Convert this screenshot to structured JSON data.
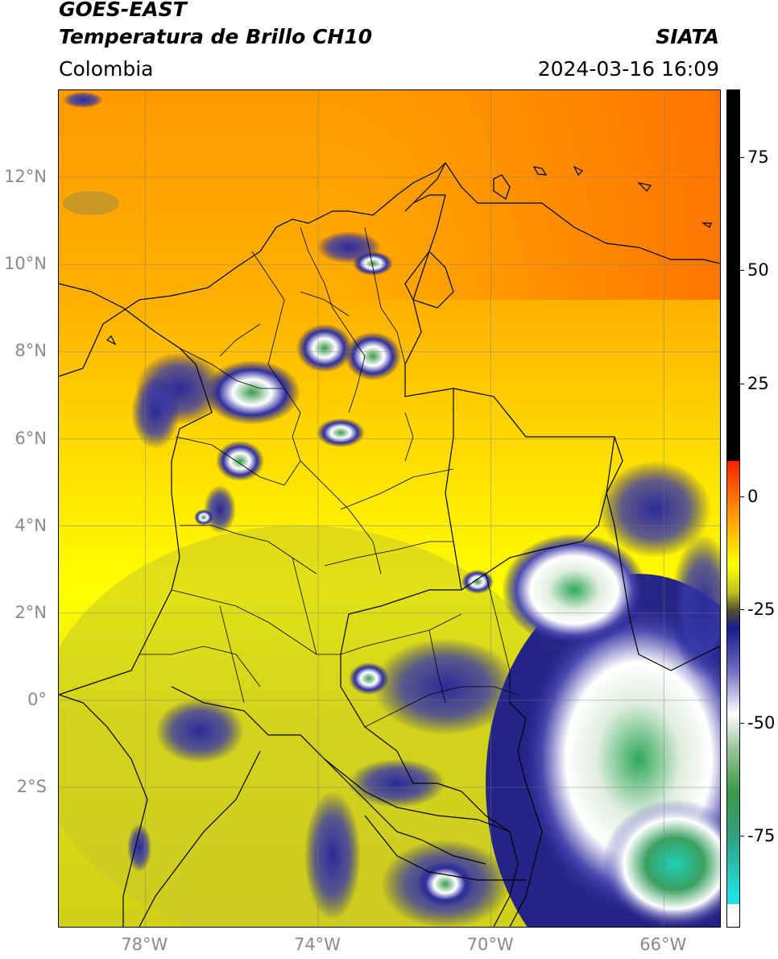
{
  "header": {
    "title_line1": "GOES-EAST",
    "title_line2": "Temperatura de Brillo CH10",
    "agency": "SIATA",
    "region": "Colombia",
    "datetime": "2024-03-16 16:09"
  },
  "map": {
    "lon_range": [
      -80,
      -64.7
    ],
    "lat_range": [
      -5.2,
      14.0
    ],
    "lat_ticks": [
      {
        "lat": 12,
        "label": "12°N"
      },
      {
        "lat": 10,
        "label": "10°N"
      },
      {
        "lat": 8,
        "label": "8°N"
      },
      {
        "lat": 6,
        "label": "6°N"
      },
      {
        "lat": 4,
        "label": "4°N"
      },
      {
        "lat": 2,
        "label": "2°N"
      },
      {
        "lat": 0,
        "label": "0°"
      },
      {
        "lat": -2,
        "label": "2°S"
      }
    ],
    "lon_ticks": [
      {
        "lon": -78,
        "label": "78°W"
      },
      {
        "lon": -74,
        "label": "74°W"
      },
      {
        "lon": -70,
        "label": "70°W"
      },
      {
        "lon": -66,
        "label": "66°W"
      }
    ],
    "colors": {
      "warm_sea": "#ff8c00",
      "land_warm": "#ffd400",
      "yellow": "#ffff00",
      "olive": "#c8c820",
      "cloud_blue": "#1a1a8c",
      "cloud_white": "#ffffff",
      "cloud_green": "#3a9a4a",
      "cloud_teal": "#20d0c0"
    },
    "gridlines": true
  },
  "colorbar": {
    "ticks": [
      {
        "value": 75,
        "label": "75"
      },
      {
        "value": 50,
        "label": "50"
      },
      {
        "value": 25,
        "label": "25"
      },
      {
        "value": 0,
        "label": "0"
      },
      {
        "value": -25,
        "label": "-25"
      },
      {
        "value": -50,
        "label": "-50"
      },
      {
        "value": -75,
        "label": "-75"
      }
    ],
    "range": [
      -95,
      90
    ]
  }
}
